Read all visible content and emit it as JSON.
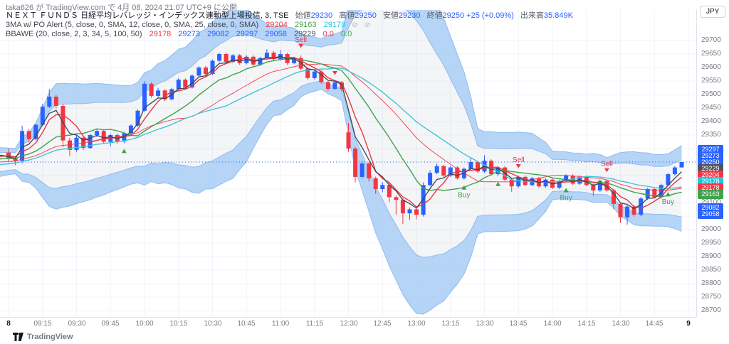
{
  "header": {
    "published": "taka626 が TradingView.com で 4月 08, 2024 21:07 UTC+9 に公開"
  },
  "axis_currency": "JPY",
  "legend": {
    "row1": {
      "symbol": "ＮＥＸＴ ＦＵＮＤＳ 日経平均レバレッジ・インデックス連動型上場投信, 3, TSE",
      "fields": [
        {
          "label": "始値",
          "value": "29230"
        },
        {
          "label": "高値",
          "value": "29250"
        },
        {
          "label": "安値",
          "value": "29230"
        },
        {
          "label": "終値",
          "value": "29250"
        }
      ],
      "change": "+25 (+0.09%)",
      "volume_label": "出来高",
      "volume": "35.849K"
    },
    "row2": {
      "name": "3MA w/ PO Alert (5, close, 0, SMA, 12, close, 0, SMA, 25, close, 0, SMA)",
      "values": [
        {
          "v": "29204",
          "c": "#f23645"
        },
        {
          "v": "29163",
          "c": "#3fa34e"
        },
        {
          "v": "29178",
          "c": "#26c6da"
        }
      ],
      "icon": "⊘"
    },
    "row3": {
      "name": "BBAWE (20, close, 2, 3, 34, 5, 100, 50)",
      "values": [
        {
          "v": "29178",
          "c": "#f23645"
        },
        {
          "v": "29273",
          "c": "#2962ff"
        },
        {
          "v": "29082",
          "c": "#2962ff"
        },
        {
          "v": "29297",
          "c": "#2962ff"
        },
        {
          "v": "29058",
          "c": "#2962ff"
        },
        {
          "v": "29229",
          "c": "#50535e"
        },
        {
          "v": "0.0",
          "c": "#f23645"
        },
        {
          "v": "0.0",
          "c": "#3fa34e"
        }
      ]
    }
  },
  "price_axis": {
    "chips": [
      {
        "v": "29297",
        "bg": "#2962ff",
        "y": 210
      },
      {
        "v": "29273",
        "bg": "#2962ff",
        "y": 219
      },
      {
        "v": "29250",
        "bg": "#2962ff",
        "y": 228
      },
      {
        "v": "29229",
        "bg": "#50535e",
        "y": 237
      },
      {
        "v": "29204",
        "bg": "#f23645",
        "y": 246
      },
      {
        "v": "29178",
        "bg": "#26c6da",
        "y": 255
      },
      {
        "v": "29178",
        "bg": "#f23645",
        "y": 264
      },
      {
        "v": "29163",
        "bg": "#3fa34e",
        "y": 273
      },
      {
        "v": "29082",
        "bg": "#2962ff",
        "y": 292
      },
      {
        "v": "29058",
        "bg": "#2962ff",
        "y": 301
      }
    ]
  },
  "signals": [
    {
      "bar": 17,
      "type": "tri_up"
    },
    {
      "bar": 43,
      "type": "sell",
      "label": "Sell"
    },
    {
      "bar": 48,
      "type": "tri_down"
    },
    {
      "bar": 67,
      "type": "buy",
      "label": "Buy"
    },
    {
      "bar": 72,
      "type": "tri_up"
    },
    {
      "bar": 75,
      "type": "sell",
      "label": "Sell"
    },
    {
      "bar": 82,
      "type": "buy",
      "label": "Buy"
    },
    {
      "bar": 88,
      "type": "sell",
      "label": "Sell"
    },
    {
      "bar": 97,
      "type": "buy",
      "label": "Buy"
    }
  ],
  "footer": {
    "brand": "TradingView"
  },
  "chart_data": {
    "type": "candlestick",
    "timeframe_minutes": 3,
    "session": "09:00-11:30, 12:30-15:00 (TSE, lunch break omitted)",
    "last_price": 29250,
    "y_range": [
      28700,
      29700
    ],
    "grid_step": 50,
    "y_ticks": [
      29700,
      29650,
      29600,
      29550,
      29500,
      29450,
      29400,
      29350,
      29300,
      29250,
      29200,
      29150,
      29100,
      29050,
      29000,
      28950,
      28900,
      28850,
      28800,
      28750,
      28700
    ],
    "x_ticks": [
      {
        "label": "8",
        "bar": 0,
        "major": true
      },
      {
        "label": "09:15",
        "bar": 5
      },
      {
        "label": "09:30",
        "bar": 10
      },
      {
        "label": "09:45",
        "bar": 15
      },
      {
        "label": "10:00",
        "bar": 20
      },
      {
        "label": "10:15",
        "bar": 25
      },
      {
        "label": "10:30",
        "bar": 30
      },
      {
        "label": "10:45",
        "bar": 35
      },
      {
        "label": "11:00",
        "bar": 40
      },
      {
        "label": "11:15",
        "bar": 45
      },
      {
        "label": "12:30",
        "bar": 50
      },
      {
        "label": "12:45",
        "bar": 55
      },
      {
        "label": "13:00",
        "bar": 60
      },
      {
        "label": "13:15",
        "bar": 65
      },
      {
        "label": "13:30",
        "bar": 70
      },
      {
        "label": "13:45",
        "bar": 75
      },
      {
        "label": "14:00",
        "bar": 80
      },
      {
        "label": "14:15",
        "bar": 85
      },
      {
        "label": "14:30",
        "bar": 90
      },
      {
        "label": "14:45",
        "bar": 95
      },
      {
        "label": "9",
        "bar": 100,
        "major": true
      }
    ],
    "layout": {
      "x0": 12,
      "bar_step": 9.55,
      "pane_w": 978,
      "pane_h": 432,
      "y_top": 43,
      "p_top": 29700,
      "ppx": 0.38
    },
    "colors": {
      "up": "#2962ff",
      "down": "#f23645",
      "sell": "#f23645",
      "buy": "#3fa34e",
      "band_fill": "#a8ccf4",
      "band_line": "#8ab8ee",
      "inner_fill": "rgba(115,125,150,0.08)",
      "sma5": "#e5383f",
      "sma12": "#3fa34e",
      "sma25": "#45c4d8",
      "basis": "#f23645",
      "fast": "#3e4451",
      "grid": "#f0f3fa",
      "axis_text": "#787b86",
      "last_price": "#2962ff"
    },
    "indicators": [
      {
        "name": "SMA5",
        "period": 5,
        "color_key": "sma5"
      },
      {
        "name": "SMA12",
        "period": 12,
        "color_key": "sma12"
      },
      {
        "name": "SMA25",
        "period": 25,
        "color_key": "sma25"
      },
      {
        "name": "BB basis SMA20",
        "period": 20,
        "color_key": "basis"
      },
      {
        "name": "fast EMA4",
        "period": 4,
        "color_key": "fast"
      },
      {
        "name": "Bollinger 2σ/3σ shaded between",
        "period": 20,
        "dev": [
          2,
          3
        ]
      }
    ],
    "seed_closes": [
      29160,
      29172,
      29185,
      29178,
      29195,
      29205,
      29192,
      29200,
      29215,
      29208,
      29222,
      29232,
      29218,
      29228,
      29242,
      29236,
      29248,
      29238,
      29250,
      29258,
      29246,
      29252,
      29262,
      29255,
      29265,
      29258,
      29268,
      29272,
      29278,
      29282
    ],
    "ohlc": [
      [
        29285,
        29300,
        29252,
        29262
      ],
      [
        29262,
        29272,
        29238,
        29255
      ],
      [
        29255,
        29385,
        29245,
        29365
      ],
      [
        29365,
        29372,
        29322,
        29335
      ],
      [
        29335,
        29392,
        29330,
        29388
      ],
      [
        29388,
        29465,
        29383,
        29455
      ],
      [
        29455,
        29520,
        29450,
        29492
      ],
      [
        29492,
        29498,
        29448,
        29458
      ],
      [
        29458,
        29465,
        29305,
        29330
      ],
      [
        29330,
        29340,
        29272,
        29295
      ],
      [
        29295,
        29348,
        29288,
        29340
      ],
      [
        29340,
        29345,
        29295,
        29302
      ],
      [
        29302,
        29355,
        29298,
        29350
      ],
      [
        29350,
        29372,
        29342,
        29365
      ],
      [
        29365,
        29370,
        29318,
        29325
      ],
      [
        29325,
        29355,
        29308,
        29350
      ],
      [
        29350,
        29356,
        29318,
        29326
      ],
      [
        29326,
        29362,
        29320,
        29356
      ],
      [
        29356,
        29390,
        29350,
        29385
      ],
      [
        29385,
        29445,
        29380,
        29440
      ],
      [
        29440,
        29550,
        29435,
        29540
      ],
      [
        29540,
        29546,
        29488,
        29495
      ],
      [
        29495,
        29525,
        29490,
        29515
      ],
      [
        29515,
        29520,
        29475,
        29482
      ],
      [
        29482,
        29525,
        29478,
        29520
      ],
      [
        29520,
        29560,
        29515,
        29555
      ],
      [
        29555,
        29560,
        29520,
        29526
      ],
      [
        29526,
        29575,
        29522,
        29570
      ],
      [
        29570,
        29605,
        29565,
        29600
      ],
      [
        29600,
        29606,
        29570,
        29576
      ],
      [
        29576,
        29630,
        29572,
        29625
      ],
      [
        29625,
        29655,
        29620,
        29650
      ],
      [
        29650,
        29656,
        29615,
        29621
      ],
      [
        29621,
        29650,
        29616,
        29645
      ],
      [
        29645,
        29650,
        29610,
        29616
      ],
      [
        29616,
        29645,
        29612,
        29640
      ],
      [
        29640,
        29645,
        29605,
        29611
      ],
      [
        29611,
        29640,
        29606,
        29635
      ],
      [
        29635,
        29668,
        29630,
        29655
      ],
      [
        29655,
        29660,
        29625,
        29631
      ],
      [
        29631,
        29665,
        29626,
        29650
      ],
      [
        29650,
        29655,
        29610,
        29616
      ],
      [
        29616,
        29640,
        29612,
        29635
      ],
      [
        29635,
        29645,
        29590,
        29596
      ],
      [
        29596,
        29600,
        29555,
        29561
      ],
      [
        29561,
        29590,
        29556,
        29585
      ],
      [
        29585,
        29590,
        29540,
        29546
      ],
      [
        29546,
        29550,
        29512,
        29521
      ],
      [
        29521,
        29550,
        29516,
        29545
      ],
      [
        29545,
        29550,
        29512,
        29520
      ],
      [
        29360,
        29395,
        29288,
        29300
      ],
      [
        29300,
        29306,
        29175,
        29195
      ],
      [
        29195,
        29255,
        29190,
        29245
      ],
      [
        29245,
        29250,
        29178,
        29190
      ],
      [
        29190,
        29196,
        29132,
        29150
      ],
      [
        29150,
        29176,
        29138,
        29165
      ],
      [
        29165,
        29170,
        29102,
        29120
      ],
      [
        29120,
        29126,
        29055,
        29110
      ],
      [
        29110,
        29115,
        29020,
        29060
      ],
      [
        29060,
        29082,
        29035,
        29075
      ],
      [
        29075,
        29080,
        29038,
        29055
      ],
      [
        29055,
        29175,
        29048,
        29165
      ],
      [
        29165,
        29220,
        29160,
        29210
      ],
      [
        29210,
        29245,
        29205,
        29235
      ],
      [
        29235,
        29240,
        29195,
        29200
      ],
      [
        29200,
        29235,
        29195,
        29230
      ],
      [
        29230,
        29235,
        29185,
        29190
      ],
      [
        29190,
        29230,
        29185,
        29225
      ],
      [
        29225,
        29265,
        29220,
        29250
      ],
      [
        29250,
        29255,
        29210,
        29215
      ],
      [
        29215,
        29275,
        29210,
        29255
      ],
      [
        29255,
        29260,
        29200,
        29205
      ],
      [
        29205,
        29235,
        29198,
        29230
      ],
      [
        29230,
        29235,
        29180,
        29185
      ],
      [
        29185,
        29190,
        29140,
        29160
      ],
      [
        29160,
        29200,
        29155,
        29195
      ],
      [
        29195,
        29200,
        29160,
        29165
      ],
      [
        29165,
        29195,
        29160,
        29190
      ],
      [
        29190,
        29195,
        29155,
        29160
      ],
      [
        29160,
        29190,
        29155,
        29185
      ],
      [
        29185,
        29190,
        29150,
        29155
      ],
      [
        29155,
        29185,
        29150,
        29180
      ],
      [
        29180,
        29205,
        29175,
        29200
      ],
      [
        29200,
        29205,
        29165,
        29170
      ],
      [
        29170,
        29200,
        29165,
        29195
      ],
      [
        29195,
        29200,
        29160,
        29165
      ],
      [
        29165,
        29170,
        29125,
        29145
      ],
      [
        29145,
        29185,
        29140,
        29180
      ],
      [
        29180,
        29185,
        29140,
        29145
      ],
      [
        29145,
        29150,
        29075,
        29095
      ],
      [
        29095,
        29100,
        29025,
        29045
      ],
      [
        29045,
        29090,
        29018,
        29085
      ],
      [
        29085,
        29090,
        29048,
        29055
      ],
      [
        29055,
        29120,
        29050,
        29115
      ],
      [
        29115,
        29155,
        29110,
        29150
      ],
      [
        29150,
        29155,
        29115,
        29120
      ],
      [
        29120,
        29170,
        29115,
        29165
      ],
      [
        29165,
        29210,
        29160,
        29205
      ],
      [
        29205,
        29235,
        29200,
        29230
      ],
      [
        29230,
        29250,
        29230,
        29250
      ]
    ]
  }
}
